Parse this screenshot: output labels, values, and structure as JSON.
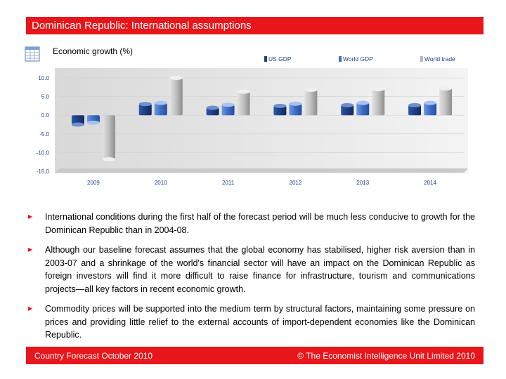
{
  "header": {
    "title": "Dominican Republic: International assumptions"
  },
  "chart_data": {
    "type": "bar",
    "title": "Economic growth (%)",
    "categories": [
      "2009",
      "2010",
      "2011",
      "2012",
      "2013",
      "2014"
    ],
    "series": [
      {
        "name": "US GDP",
        "values": [
          -2.5,
          3.0,
          2.0,
          2.5,
          2.7,
          2.7
        ],
        "color": "#1f3f86"
      },
      {
        "name": "World GDP",
        "values": [
          -2.0,
          3.3,
          2.8,
          3.1,
          3.3,
          3.3
        ],
        "color": "#3f6fc8"
      },
      {
        "name": "World trade",
        "values": [
          -11.8,
          10.0,
          6.3,
          6.8,
          7.0,
          7.2
        ],
        "color": "#b8b8b8"
      }
    ],
    "yticks": [
      "10.0",
      "5.0",
      "0.0",
      "-5.0",
      "-10.0",
      "-15.0"
    ],
    "ylim": [
      -15,
      10
    ],
    "xlabel": "",
    "ylabel": "",
    "legend_position": "top-right"
  },
  "bullets": [
    "International conditions during the first half of the forecast period will be much less conducive to growth for the Dominican Republic than in 2004-08.",
    "Although our baseline forecast assumes that the global economy has stabilised, higher risk aversion than in 2003-07 and a shrinkage of the world's financial sector will have an impact on the Dominican Republic as foreign investors will find it more difficult to raise finance for infrastructure, tourism and communications projects—all key factors in recent economic growth.",
    "Commodity prices will be supported into the medium term by structural factors, maintaining some pressure on prices and providing little relief to the external accounts of import-dependent economies like the Dominican Republic."
  ],
  "footer": {
    "left": "Country Forecast October 2010",
    "right": "© The Economist Intelligence Unit Limited 2010"
  }
}
